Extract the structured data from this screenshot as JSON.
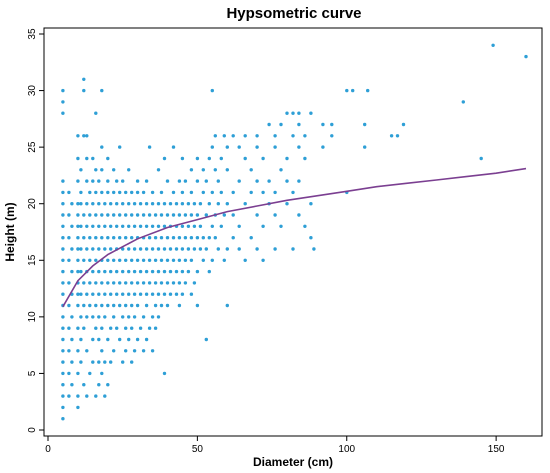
{
  "chart_data": {
    "type": "scatter",
    "title": "Hypsometric curve",
    "xlabel": "Diameter (cm)",
    "ylabel": "Height (m)",
    "xlim": [
      0,
      165
    ],
    "ylim": [
      0,
      35
    ],
    "x_ticks": [
      0,
      50,
      100,
      150
    ],
    "y_ticks": [
      0,
      5,
      10,
      15,
      20,
      25,
      30,
      35
    ],
    "grid": false,
    "legend": "none",
    "point_color": "#2e9fd6",
    "curve_color": "#7b3f91",
    "points": [
      [
        5,
        1
      ],
      [
        5,
        2
      ],
      [
        5,
        3
      ],
      [
        5,
        4
      ],
      [
        5,
        5
      ],
      [
        5,
        6
      ],
      [
        5,
        7
      ],
      [
        5,
        8
      ],
      [
        5,
        9
      ],
      [
        5,
        10
      ],
      [
        5,
        11
      ],
      [
        5,
        12
      ],
      [
        5,
        13
      ],
      [
        5,
        14
      ],
      [
        5,
        15
      ],
      [
        5,
        16
      ],
      [
        5,
        17
      ],
      [
        5,
        18
      ],
      [
        5,
        19
      ],
      [
        5,
        20
      ],
      [
        5,
        21
      ],
      [
        5,
        22
      ],
      [
        5,
        28
      ],
      [
        5,
        29
      ],
      [
        5,
        30
      ],
      [
        7,
        3
      ],
      [
        7,
        5
      ],
      [
        7,
        7
      ],
      [
        7,
        9
      ],
      [
        7,
        11
      ],
      [
        7,
        13
      ],
      [
        7,
        15
      ],
      [
        7,
        17
      ],
      [
        7,
        19
      ],
      [
        7,
        21
      ],
      [
        8,
        4
      ],
      [
        8,
        6
      ],
      [
        8,
        8
      ],
      [
        8,
        10
      ],
      [
        8,
        12
      ],
      [
        8,
        14
      ],
      [
        8,
        16
      ],
      [
        8,
        18
      ],
      [
        8,
        20
      ],
      [
        10,
        2
      ],
      [
        10,
        3
      ],
      [
        10,
        5
      ],
      [
        10,
        7
      ],
      [
        10,
        9
      ],
      [
        10,
        11
      ],
      [
        10,
        12
      ],
      [
        10,
        13
      ],
      [
        10,
        14
      ],
      [
        10,
        15
      ],
      [
        10,
        16
      ],
      [
        10,
        17
      ],
      [
        10,
        18
      ],
      [
        10,
        19
      ],
      [
        10,
        20
      ],
      [
        10,
        22
      ],
      [
        10,
        24
      ],
      [
        10,
        26
      ],
      [
        11,
        6
      ],
      [
        11,
        8
      ],
      [
        11,
        10
      ],
      [
        11,
        12
      ],
      [
        11,
        14
      ],
      [
        11,
        16
      ],
      [
        11,
        18
      ],
      [
        11,
        20
      ],
      [
        11,
        21
      ],
      [
        11,
        23
      ],
      [
        12,
        4
      ],
      [
        12,
        9
      ],
      [
        12,
        11
      ],
      [
        12,
        13
      ],
      [
        12,
        15
      ],
      [
        12,
        17
      ],
      [
        12,
        19
      ],
      [
        12,
        26
      ],
      [
        12,
        30
      ],
      [
        12,
        31
      ],
      [
        13,
        3
      ],
      [
        13,
        7
      ],
      [
        13,
        10
      ],
      [
        13,
        12
      ],
      [
        13,
        14
      ],
      [
        13,
        16
      ],
      [
        13,
        18
      ],
      [
        13,
        20
      ],
      [
        13,
        22
      ],
      [
        13,
        24
      ],
      [
        13,
        26
      ],
      [
        14,
        5
      ],
      [
        14,
        11
      ],
      [
        14,
        13
      ],
      [
        14,
        15
      ],
      [
        14,
        17
      ],
      [
        14,
        19
      ],
      [
        14,
        21
      ],
      [
        15,
        6
      ],
      [
        15,
        8
      ],
      [
        15,
        10
      ],
      [
        15,
        12
      ],
      [
        15,
        14
      ],
      [
        15,
        16
      ],
      [
        15,
        18
      ],
      [
        15,
        20
      ],
      [
        15,
        22
      ],
      [
        15,
        24
      ],
      [
        16,
        3
      ],
      [
        16,
        9
      ],
      [
        16,
        11
      ],
      [
        16,
        13
      ],
      [
        16,
        15
      ],
      [
        16,
        17
      ],
      [
        16,
        19
      ],
      [
        16,
        21
      ],
      [
        16,
        23
      ],
      [
        16,
        28
      ],
      [
        17,
        4
      ],
      [
        17,
        6
      ],
      [
        17,
        8
      ],
      [
        17,
        10
      ],
      [
        17,
        12
      ],
      [
        17,
        14
      ],
      [
        17,
        16
      ],
      [
        17,
        18
      ],
      [
        17,
        20
      ],
      [
        17,
        22
      ],
      [
        18,
        5
      ],
      [
        18,
        7
      ],
      [
        18,
        9
      ],
      [
        18,
        11
      ],
      [
        18,
        13
      ],
      [
        18,
        15
      ],
      [
        18,
        17
      ],
      [
        18,
        19
      ],
      [
        18,
        21
      ],
      [
        18,
        23
      ],
      [
        18,
        25
      ],
      [
        18,
        30
      ],
      [
        19,
        3
      ],
      [
        19,
        6
      ],
      [
        19,
        10
      ],
      [
        19,
        12
      ],
      [
        19,
        14
      ],
      [
        19,
        16
      ],
      [
        19,
        18
      ],
      [
        19,
        20
      ],
      [
        20,
        4
      ],
      [
        20,
        8
      ],
      [
        20,
        11
      ],
      [
        20,
        13
      ],
      [
        20,
        15
      ],
      [
        20,
        17
      ],
      [
        20,
        19
      ],
      [
        20,
        21
      ],
      [
        20,
        22
      ],
      [
        20,
        24
      ],
      [
        21,
        6
      ],
      [
        21,
        9
      ],
      [
        21,
        12
      ],
      [
        21,
        14
      ],
      [
        21,
        16
      ],
      [
        21,
        18
      ],
      [
        21,
        20
      ],
      [
        22,
        7
      ],
      [
        22,
        10
      ],
      [
        22,
        11
      ],
      [
        22,
        13
      ],
      [
        22,
        15
      ],
      [
        22,
        17
      ],
      [
        22,
        19
      ],
      [
        22,
        21
      ],
      [
        22,
        23
      ],
      [
        23,
        9
      ],
      [
        23,
        12
      ],
      [
        23,
        14
      ],
      [
        23,
        16
      ],
      [
        23,
        18
      ],
      [
        23,
        20
      ],
      [
        23,
        22
      ],
      [
        24,
        8
      ],
      [
        24,
        11
      ],
      [
        24,
        13
      ],
      [
        24,
        15
      ],
      [
        24,
        17
      ],
      [
        24,
        19
      ],
      [
        24,
        21
      ],
      [
        24,
        25
      ],
      [
        25,
        6
      ],
      [
        25,
        10
      ],
      [
        25,
        12
      ],
      [
        25,
        14
      ],
      [
        25,
        16
      ],
      [
        25,
        18
      ],
      [
        25,
        20
      ],
      [
        25,
        22
      ],
      [
        26,
        7
      ],
      [
        26,
        9
      ],
      [
        26,
        11
      ],
      [
        26,
        13
      ],
      [
        26,
        15
      ],
      [
        26,
        17
      ],
      [
        26,
        19
      ],
      [
        26,
        21
      ],
      [
        27,
        8
      ],
      [
        27,
        10
      ],
      [
        27,
        12
      ],
      [
        27,
        14
      ],
      [
        27,
        16
      ],
      [
        27,
        18
      ],
      [
        27,
        20
      ],
      [
        27,
        23
      ],
      [
        28,
        6
      ],
      [
        28,
        9
      ],
      [
        28,
        11
      ],
      [
        28,
        13
      ],
      [
        28,
        15
      ],
      [
        28,
        17
      ],
      [
        28,
        19
      ],
      [
        28,
        21
      ],
      [
        29,
        7
      ],
      [
        29,
        10
      ],
      [
        29,
        12
      ],
      [
        29,
        14
      ],
      [
        29,
        16
      ],
      [
        29,
        18
      ],
      [
        29,
        20
      ],
      [
        30,
        8
      ],
      [
        30,
        11
      ],
      [
        30,
        13
      ],
      [
        30,
        15
      ],
      [
        30,
        17
      ],
      [
        30,
        19
      ],
      [
        30,
        21
      ],
      [
        30,
        22
      ],
      [
        31,
        9
      ],
      [
        31,
        12
      ],
      [
        31,
        14
      ],
      [
        31,
        16
      ],
      [
        31,
        18
      ],
      [
        31,
        20
      ],
      [
        32,
        7
      ],
      [
        32,
        10
      ],
      [
        32,
        13
      ],
      [
        32,
        15
      ],
      [
        32,
        17
      ],
      [
        32,
        19
      ],
      [
        32,
        21
      ],
      [
        33,
        8
      ],
      [
        33,
        11
      ],
      [
        33,
        12
      ],
      [
        33,
        14
      ],
      [
        33,
        16
      ],
      [
        33,
        18
      ],
      [
        33,
        20
      ],
      [
        33,
        22
      ],
      [
        34,
        9
      ],
      [
        34,
        13
      ],
      [
        34,
        15
      ],
      [
        34,
        17
      ],
      [
        34,
        19
      ],
      [
        34,
        25
      ],
      [
        35,
        7
      ],
      [
        35,
        10
      ],
      [
        35,
        12
      ],
      [
        35,
        14
      ],
      [
        35,
        16
      ],
      [
        35,
        18
      ],
      [
        35,
        20
      ],
      [
        35,
        21
      ],
      [
        36,
        9
      ],
      [
        36,
        11
      ],
      [
        36,
        13
      ],
      [
        36,
        15
      ],
      [
        36,
        17
      ],
      [
        36,
        19
      ],
      [
        37,
        10
      ],
      [
        37,
        12
      ],
      [
        37,
        14
      ],
      [
        37,
        16
      ],
      [
        37,
        18
      ],
      [
        37,
        20
      ],
      [
        37,
        23
      ],
      [
        38,
        11
      ],
      [
        38,
        13
      ],
      [
        38,
        15
      ],
      [
        38,
        17
      ],
      [
        38,
        19
      ],
      [
        38,
        21
      ],
      [
        39,
        5
      ],
      [
        39,
        12
      ],
      [
        39,
        14
      ],
      [
        39,
        16
      ],
      [
        39,
        18
      ],
      [
        39,
        20
      ],
      [
        39,
        24
      ],
      [
        40,
        11
      ],
      [
        40,
        13
      ],
      [
        40,
        15
      ],
      [
        40,
        17
      ],
      [
        40,
        19
      ],
      [
        40,
        22
      ],
      [
        41,
        12
      ],
      [
        41,
        14
      ],
      [
        41,
        16
      ],
      [
        41,
        18
      ],
      [
        41,
        20
      ],
      [
        42,
        13
      ],
      [
        42,
        15
      ],
      [
        42,
        17
      ],
      [
        42,
        19
      ],
      [
        42,
        21
      ],
      [
        42,
        25
      ],
      [
        43,
        12
      ],
      [
        43,
        14
      ],
      [
        43,
        16
      ],
      [
        43,
        18
      ],
      [
        43,
        20
      ],
      [
        44,
        11
      ],
      [
        44,
        13
      ],
      [
        44,
        15
      ],
      [
        44,
        17
      ],
      [
        44,
        19
      ],
      [
        44,
        22
      ],
      [
        45,
        12
      ],
      [
        45,
        14
      ],
      [
        45,
        16
      ],
      [
        45,
        18
      ],
      [
        45,
        20
      ],
      [
        45,
        21
      ],
      [
        45,
        24
      ],
      [
        46,
        13
      ],
      [
        46,
        15
      ],
      [
        46,
        17
      ],
      [
        46,
        19
      ],
      [
        46,
        22
      ],
      [
        47,
        14
      ],
      [
        47,
        16
      ],
      [
        47,
        18
      ],
      [
        47,
        20
      ],
      [
        48,
        12
      ],
      [
        48,
        15
      ],
      [
        48,
        17
      ],
      [
        48,
        19
      ],
      [
        48,
        21
      ],
      [
        48,
        23
      ],
      [
        49,
        13
      ],
      [
        49,
        16
      ],
      [
        49,
        18
      ],
      [
        49,
        20
      ],
      [
        50,
        11
      ],
      [
        50,
        14
      ],
      [
        50,
        17
      ],
      [
        50,
        19
      ],
      [
        50,
        22
      ],
      [
        50,
        24
      ],
      [
        51,
        16
      ],
      [
        51,
        18
      ],
      [
        51,
        20
      ],
      [
        52,
        15
      ],
      [
        52,
        17
      ],
      [
        52,
        21
      ],
      [
        52,
        23
      ],
      [
        53,
        8
      ],
      [
        53,
        16
      ],
      [
        53,
        19
      ],
      [
        53,
        22
      ],
      [
        54,
        14
      ],
      [
        54,
        17
      ],
      [
        54,
        20
      ],
      [
        54,
        24
      ],
      [
        55,
        15
      ],
      [
        55,
        18
      ],
      [
        55,
        21
      ],
      [
        55,
        25
      ],
      [
        55,
        30
      ],
      [
        56,
        17
      ],
      [
        56,
        19
      ],
      [
        56,
        23
      ],
      [
        56,
        26
      ],
      [
        57,
        16
      ],
      [
        57,
        20
      ],
      [
        57,
        22
      ],
      [
        58,
        18
      ],
      [
        58,
        21
      ],
      [
        58,
        24
      ],
      [
        59,
        15
      ],
      [
        59,
        19
      ],
      [
        59,
        26
      ],
      [
        60,
        11
      ],
      [
        60,
        16
      ],
      [
        60,
        20
      ],
      [
        60,
        23
      ],
      [
        60,
        25
      ],
      [
        62,
        17
      ],
      [
        62,
        19
      ],
      [
        62,
        21
      ],
      [
        62,
        26
      ],
      [
        64,
        16
      ],
      [
        64,
        18
      ],
      [
        64,
        22
      ],
      [
        64,
        25
      ],
      [
        66,
        15
      ],
      [
        66,
        20
      ],
      [
        66,
        24
      ],
      [
        66,
        26
      ],
      [
        68,
        17
      ],
      [
        68,
        21
      ],
      [
        68,
        23
      ],
      [
        70,
        16
      ],
      [
        70,
        19
      ],
      [
        70,
        22
      ],
      [
        70,
        25
      ],
      [
        70,
        26
      ],
      [
        72,
        15
      ],
      [
        72,
        18
      ],
      [
        72,
        21
      ],
      [
        72,
        24
      ],
      [
        74,
        20
      ],
      [
        74,
        22
      ],
      [
        74,
        27
      ],
      [
        76,
        16
      ],
      [
        76,
        19
      ],
      [
        76,
        21
      ],
      [
        76,
        25
      ],
      [
        76,
        26
      ],
      [
        78,
        18
      ],
      [
        78,
        23
      ],
      [
        78,
        27
      ],
      [
        80,
        20
      ],
      [
        80,
        22
      ],
      [
        80,
        24
      ],
      [
        80,
        28
      ],
      [
        82,
        16
      ],
      [
        82,
        21
      ],
      [
        82,
        26
      ],
      [
        82,
        28
      ],
      [
        84,
        19
      ],
      [
        84,
        22
      ],
      [
        84,
        25
      ],
      [
        84,
        27
      ],
      [
        84,
        28
      ],
      [
        86,
        18
      ],
      [
        86,
        24
      ],
      [
        86,
        26
      ],
      [
        88,
        17
      ],
      [
        88,
        20
      ],
      [
        88,
        28
      ],
      [
        89,
        16
      ],
      [
        92,
        25
      ],
      [
        92,
        27
      ],
      [
        95,
        26
      ],
      [
        95,
        27
      ],
      [
        100,
        21
      ],
      [
        100,
        30
      ],
      [
        102,
        30
      ],
      [
        106,
        25
      ],
      [
        106,
        27
      ],
      [
        107,
        30
      ],
      [
        115,
        26
      ],
      [
        117,
        26
      ],
      [
        119,
        27
      ],
      [
        139,
        29
      ],
      [
        145,
        24
      ],
      [
        149,
        34
      ],
      [
        160,
        33
      ]
    ],
    "curve": {
      "name": "",
      "x": [
        5,
        10,
        15,
        20,
        25,
        30,
        40,
        50,
        60,
        70,
        80,
        90,
        100,
        110,
        120,
        130,
        140,
        150,
        160
      ],
      "y": [
        10.9,
        13.2,
        14.5,
        15.5,
        16.2,
        16.9,
        17.9,
        18.6,
        19.3,
        19.8,
        20.3,
        20.7,
        21.1,
        21.5,
        21.8,
        22.1,
        22.4,
        22.7,
        23.1
      ]
    }
  }
}
